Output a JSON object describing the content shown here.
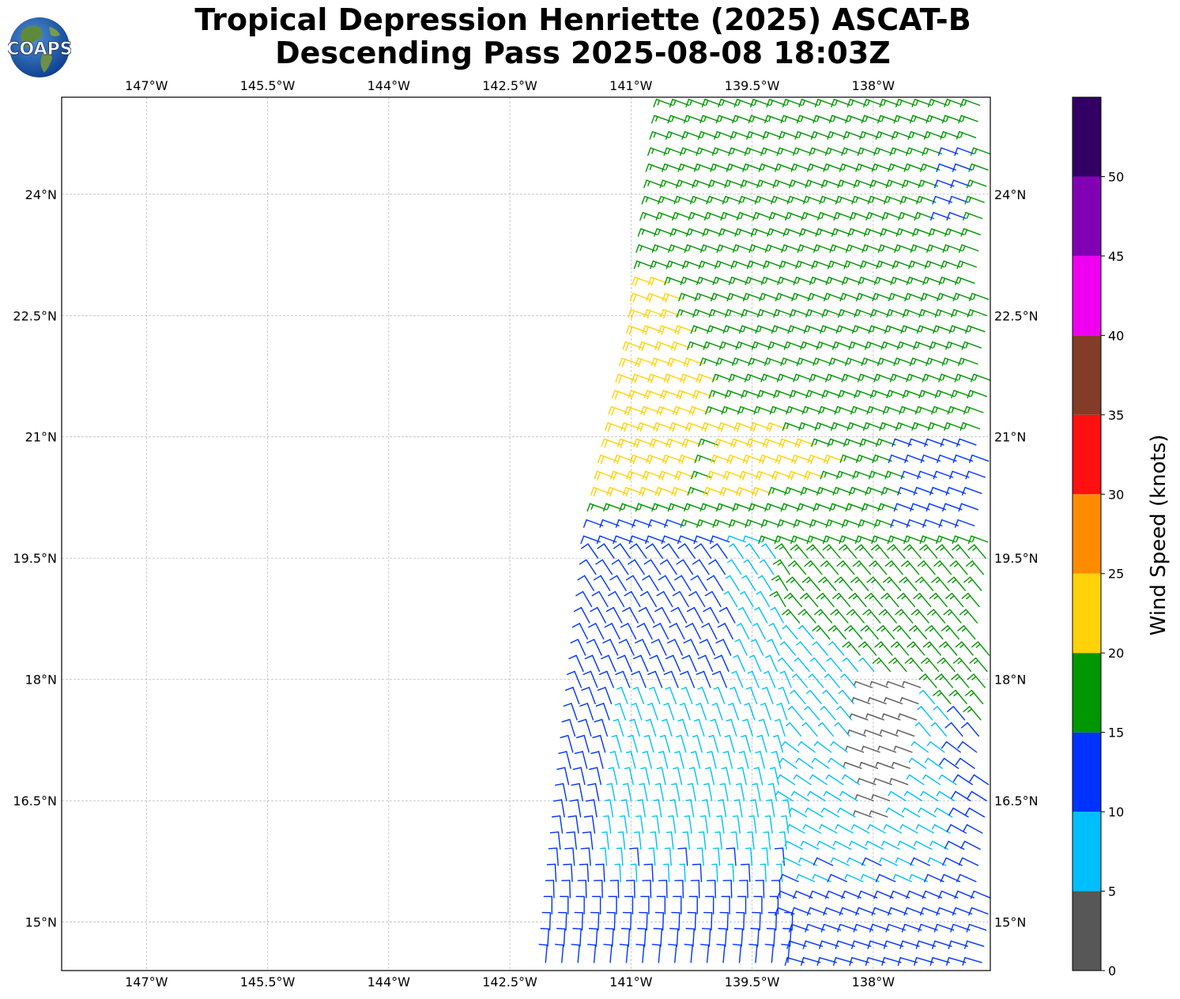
{
  "title": {
    "line1": "Tropical Depression Henriette (2025) ASCAT-B",
    "line2": "Descending Pass 2025-08-08 18:03Z"
  },
  "logo": {
    "text": "COAPS",
    "icon": "globe-logo-icon"
  },
  "map": {
    "lon_range": [
      -148.05,
      -136.55
    ],
    "lat_range": [
      14.4,
      25.2
    ],
    "grid": true,
    "lon_ticks": [
      {
        "value": -147.0,
        "label": "147°W"
      },
      {
        "value": -145.5,
        "label": "145.5°W"
      },
      {
        "value": -144.0,
        "label": "144°W"
      },
      {
        "value": -142.5,
        "label": "142.5°W"
      },
      {
        "value": -141.0,
        "label": "141°W"
      },
      {
        "value": -139.5,
        "label": "139.5°W"
      },
      {
        "value": -138.0,
        "label": "138°W"
      }
    ],
    "lat_ticks": [
      {
        "value": 24.0,
        "label": "24°N"
      },
      {
        "value": 22.5,
        "label": "22.5°N"
      },
      {
        "value": 21.0,
        "label": "21°N"
      },
      {
        "value": 19.5,
        "label": "19.5°N"
      },
      {
        "value": 18.0,
        "label": "18°N"
      },
      {
        "value": 16.5,
        "label": "16.5°N"
      },
      {
        "value": 15.0,
        "label": "15°N"
      }
    ],
    "swath": {
      "west_edge": [
        [
          -140.55,
          25.2
        ],
        [
          -140.9,
          22.3
        ],
        [
          -141.45,
          19.8
        ],
        [
          -142.15,
          14.4
        ]
      ],
      "east_limit": -136.55,
      "spacing_deg": 0.2
    },
    "regions": [
      {
        "name": "yellow-core",
        "color": "#ffd20a",
        "west": [
          [
            -141.2,
            22.8
          ],
          [
            -141.6,
            20.4
          ]
        ],
        "east": [
          [
            -140.4,
            22.8
          ],
          [
            -139.9,
            21.6
          ],
          [
            -138.8,
            21.0
          ],
          [
            -138.2,
            20.6
          ],
          [
            -139.8,
            20.1
          ]
        ]
      },
      {
        "name": "cyan-center",
        "center": [
          -138.1,
          16.7
        ]
      },
      {
        "name": "gray-center",
        "color": "#555555",
        "bounds": [
          [
            -138.15,
            16.1
          ],
          [
            -137.4,
            17.9
          ]
        ]
      }
    ]
  },
  "colorbar": {
    "label": "Wind Speed (knots)",
    "levels": [
      0,
      5,
      10,
      15,
      20,
      25,
      30,
      35,
      40,
      45,
      50,
      55
    ],
    "tick_labels": [
      "0",
      "5",
      "10",
      "15",
      "20",
      "25",
      "30",
      "35",
      "40",
      "45",
      "50"
    ],
    "colors": [
      "#575757",
      "#00bfff",
      "#0033ff",
      "#009600",
      "#ffd20a",
      "#ff8c00",
      "#ff1010",
      "#823c28",
      "#f000f0",
      "#8200b4",
      "#320064"
    ]
  },
  "chart_data": {
    "type": "wind-barbs",
    "title": "Tropical Depression Henriette (2025) ASCAT-B Descending Pass 2025-08-08 18:03Z",
    "xlabel": "",
    "ylabel": "",
    "x_range": [
      -148.05,
      -136.55
    ],
    "y_range": [
      14.4,
      25.2
    ],
    "value_label": "Wind Speed (knots)",
    "categories": [
      {
        "range": "0-5",
        "color": "#575757",
        "where": "small pocket near 138°W, 16.3-17.9°N"
      },
      {
        "range": "5-10",
        "color": "#00bfff",
        "where": "south-central swath around 16-19°N"
      },
      {
        "range": "10-15",
        "color": "#0033ff",
        "where": "western and southern swath edge, east edge below 21°N"
      },
      {
        "range": "15-20",
        "color": "#009600",
        "where": "northern swath and band 19-21°N"
      },
      {
        "range": "20-25",
        "color": "#ffd20a",
        "where": "western swath 20.3-23°N"
      }
    ]
  }
}
